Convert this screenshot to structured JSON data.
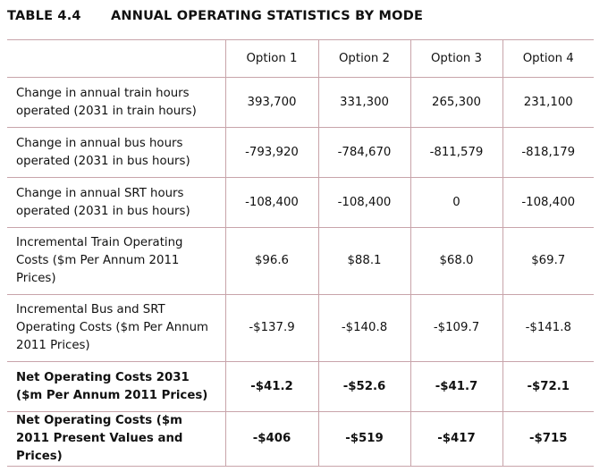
{
  "caption": {
    "number": "TABLE 4.4",
    "title": "ANNUAL OPERATING STATISTICS BY MODE"
  },
  "columns": [
    "Option 1",
    "Option 2",
    "Option 3",
    "Option 4"
  ],
  "rows": [
    {
      "label": "Change in annual train hours operated (2031 in train hours)",
      "values": [
        "393,700",
        "331,300",
        "265,300",
        "231,100"
      ]
    },
    {
      "label": "Change in annual bus hours operated (2031 in bus hours)",
      "values": [
        "-793,920",
        "-784,670",
        "-811,579",
        "-818,179"
      ]
    },
    {
      "label": "Change in annual SRT hours operated (2031 in bus hours)",
      "values": [
        "-108,400",
        "-108,400",
        "0",
        "-108,400"
      ]
    },
    {
      "label": "Incremental Train Operating Costs ($m Per Annum 2011 Prices)",
      "values": [
        "$96.6",
        "$88.1",
        "$68.0",
        "$69.7"
      ]
    },
    {
      "label": "Incremental Bus and SRT Operating Costs ($m Per Annum 2011 Prices)",
      "values": [
        "-$137.9",
        "-$140.8",
        "-$109.7",
        "-$141.8"
      ]
    },
    {
      "label": "Net Operating Costs 2031 ($m Per Annum 2011 Prices)",
      "values": [
        "-$41.2",
        "-$52.6",
        "-$41.7",
        "-$72.1"
      ]
    },
    {
      "label": "Net Operating Costs ($m 2011 Present Values and  Prices)",
      "values": [
        "-$406",
        "-$519",
        "-$417",
        "-$715"
      ]
    }
  ]
}
